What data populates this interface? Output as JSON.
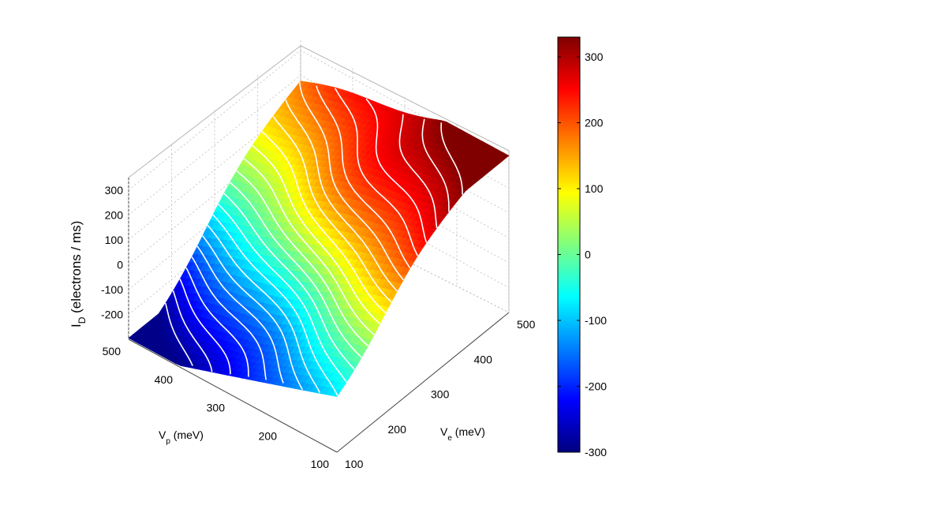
{
  "chart_data": {
    "type": "surface",
    "title": "",
    "zlabel": {
      "main": "I",
      "sub": "D",
      "rest": " (electrons / ms)"
    },
    "xlabel": {
      "main": "V",
      "sub": "p",
      "rest": "  (meV)"
    },
    "ylabel": {
      "main": "V",
      "sub": "e",
      "rest": "  (meV)"
    },
    "xlim": [
      100,
      500
    ],
    "ylim": [
      100,
      500
    ],
    "zlim": [
      -300,
      350
    ],
    "x_ticks": [
      "500",
      "400",
      "300",
      "200",
      "100"
    ],
    "y_ticks": [
      "100",
      "200",
      "300",
      "400",
      "500"
    ],
    "z_ticks": [
      "300",
      "200",
      "100",
      "0",
      "-100",
      "-200"
    ],
    "grid": true,
    "colormap": "jet",
    "contour_lines": "white",
    "colorbar": {
      "range": [
        -300,
        330
      ],
      "ticks": [
        "300",
        "200",
        "100",
        "0",
        "-100",
        "-200",
        "-300"
      ]
    },
    "surface_corners": {
      "Vp_500_Ve_100": -300,
      "Vp_100_Ve_100": -30,
      "Vp_100_Ve_500": 330,
      "Vp_500_Ve_500": 110
    }
  }
}
